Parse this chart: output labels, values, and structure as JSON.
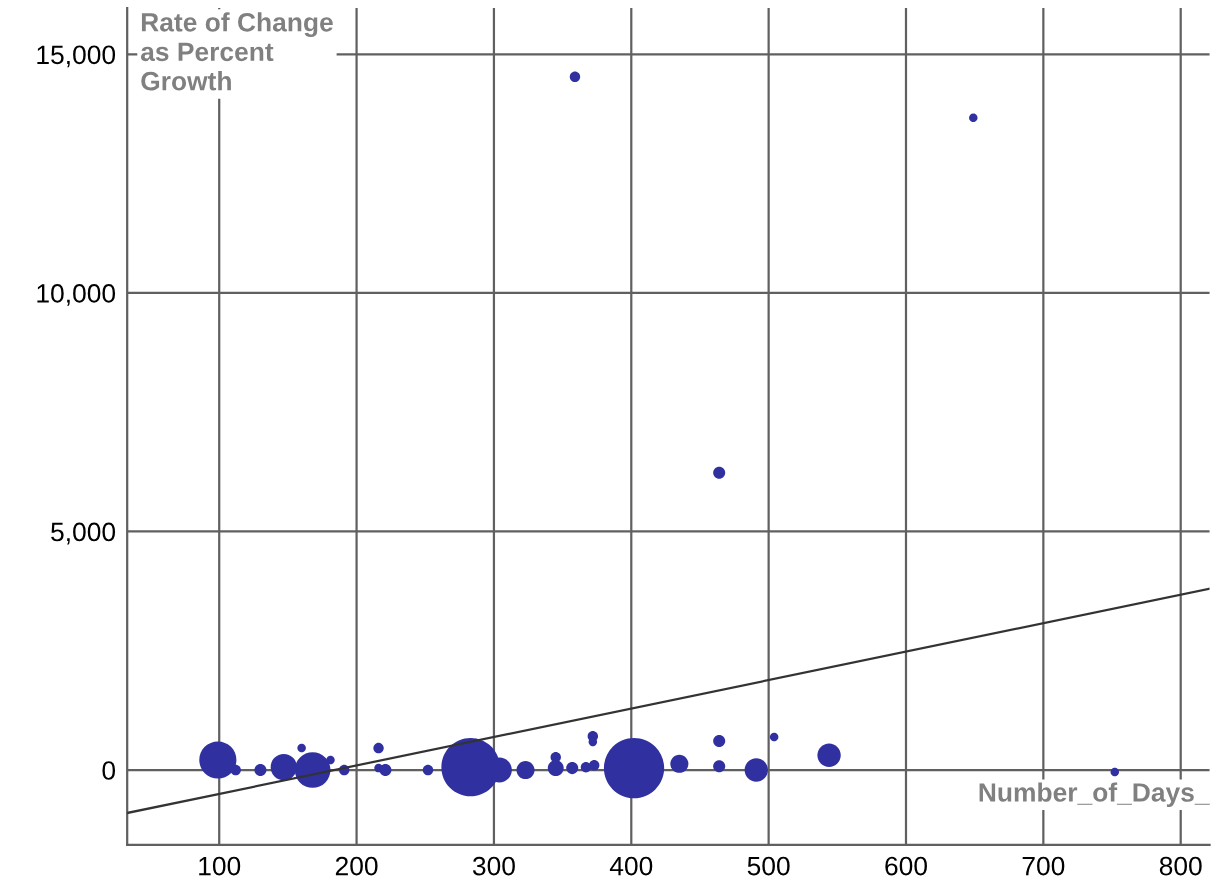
{
  "chart_data": {
    "type": "bubble",
    "xlabel": "Number_of_Days_",
    "ylabel": "Rate of Change\nas Percent\nGrowth",
    "xlim": [
      33,
      821
    ],
    "ylim": [
      -1570,
      15970
    ],
    "xticks": [
      100,
      200,
      300,
      400,
      500,
      600,
      700,
      800
    ],
    "yticks": [
      {
        "value": 0,
        "label": "0"
      },
      {
        "value": 5000,
        "label": "5,000"
      },
      {
        "value": 10000,
        "label": "10,000"
      },
      {
        "value": 15000,
        "label": "15,000"
      }
    ],
    "grid": true,
    "series": [
      {
        "color": "#3030a0",
        "x": [
          99,
          112,
          130,
          147,
          160,
          168,
          181,
          191,
          216,
          216,
          221,
          252,
          283,
          304,
          323,
          345,
          345,
          357,
          367,
          372,
          372,
          373,
          402,
          435,
          464,
          464,
          491,
          504,
          544,
          752,
          359,
          649,
          464
        ],
        "values": [
          210,
          0,
          0,
          60,
          460,
          0,
          210,
          0,
          460,
          40,
          0,
          0,
          60,
          0,
          0,
          40,
          270,
          40,
          60,
          710,
          590,
          100,
          40,
          130,
          610,
          80,
          0,
          690,
          310,
          -40,
          14530,
          13670,
          6230
        ],
        "sizes": [
          0.38,
          0.03,
          0.04,
          0.19,
          0.02,
          0.35,
          0.02,
          0.03,
          0.03,
          0.02,
          0.04,
          0.03,
          0.94,
          0.17,
          0.09,
          0.07,
          0.03,
          0.04,
          0.03,
          0.03,
          0.02,
          0.03,
          1,
          0.09,
          0.04,
          0.04,
          0.15,
          0.02,
          0.15,
          0.02,
          0.03,
          0.02,
          0.04
        ]
      },
      {
        "type": "line",
        "color": "#333333",
        "x": [
          33,
          821
        ],
        "values": [
          -900,
          3800
        ]
      }
    ]
  }
}
